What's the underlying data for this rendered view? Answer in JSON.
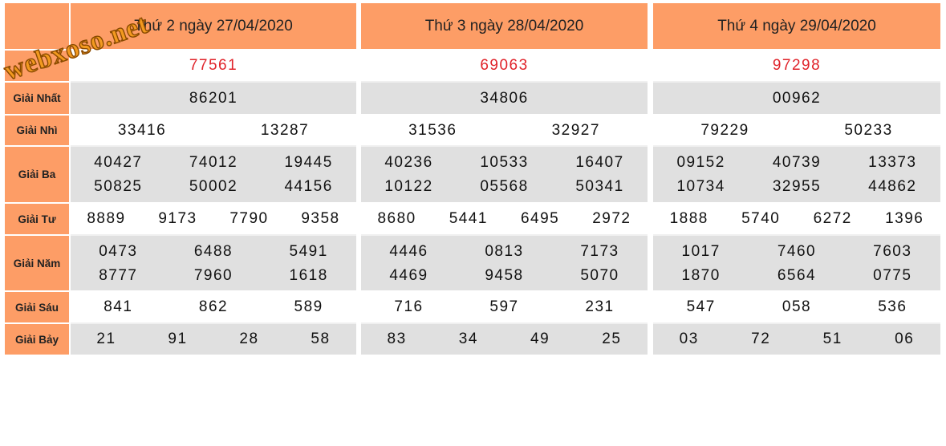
{
  "watermark": "webxoso.net",
  "labels": {
    "g1": "Giải Nhất",
    "g2": "Giải Nhì",
    "g3": "Giải Ba",
    "g4": "Giải Tư",
    "g5": "Giải Năm",
    "g6": "Giải Sáu",
    "g7": "Giải Bảy"
  },
  "columns": [
    {
      "header": "Thứ 2 ngày 27/04/2020",
      "special": "77561",
      "g1": "86201",
      "g2": [
        "33416",
        "13287"
      ],
      "g3": [
        [
          "40427",
          "74012",
          "19445"
        ],
        [
          "50825",
          "50002",
          "44156"
        ]
      ],
      "g4": [
        "8889",
        "9173",
        "7790",
        "9358"
      ],
      "g5": [
        [
          "0473",
          "6488",
          "5491"
        ],
        [
          "8777",
          "7960",
          "1618"
        ]
      ],
      "g6": [
        "841",
        "862",
        "589"
      ],
      "g7": [
        "21",
        "91",
        "28",
        "58"
      ]
    },
    {
      "header": "Thứ 3 ngày 28/04/2020",
      "special": "69063",
      "g1": "34806",
      "g2": [
        "31536",
        "32927"
      ],
      "g3": [
        [
          "40236",
          "10533",
          "16407"
        ],
        [
          "10122",
          "05568",
          "50341"
        ]
      ],
      "g4": [
        "8680",
        "5441",
        "6495",
        "2972"
      ],
      "g5": [
        [
          "4446",
          "0813",
          "7173"
        ],
        [
          "4469",
          "9458",
          "5070"
        ]
      ],
      "g6": [
        "716",
        "597",
        "231"
      ],
      "g7": [
        "83",
        "34",
        "49",
        "25"
      ]
    },
    {
      "header": "Thứ 4 ngày 29/04/2020",
      "special": "97298",
      "g1": "00962",
      "g2": [
        "79229",
        "50233"
      ],
      "g3": [
        [
          "09152",
          "40739",
          "13373"
        ],
        [
          "10734",
          "32955",
          "44862"
        ]
      ],
      "g4": [
        "1888",
        "5740",
        "6272",
        "1396"
      ],
      "g5": [
        [
          "1017",
          "7460",
          "7603"
        ],
        [
          "1870",
          "6564",
          "0775"
        ]
      ],
      "g6": [
        "547",
        "058",
        "536"
      ],
      "g7": [
        "03",
        "72",
        "51",
        "06"
      ]
    }
  ]
}
